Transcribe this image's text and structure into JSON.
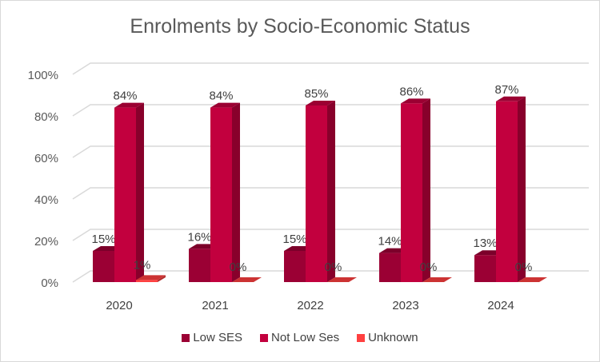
{
  "chart_data": {
    "type": "bar",
    "title": "Enrolments by Socio-Economic Status",
    "categories": [
      "2020",
      "2021",
      "2022",
      "2023",
      "2024"
    ],
    "series": [
      {
        "name": "Low SES",
        "values": [
          15,
          16,
          15,
          14,
          13
        ],
        "labels": [
          "15%",
          "16%",
          "15%",
          "14%",
          "13%"
        ],
        "color": "#9b0034"
      },
      {
        "name": "Not Low Ses",
        "values": [
          84,
          84,
          85,
          86,
          87
        ],
        "labels": [
          "84%",
          "84%",
          "85%",
          "86%",
          "87%"
        ],
        "color": "#c2003e"
      },
      {
        "name": "Unknown",
        "values": [
          1,
          0,
          0,
          0,
          0
        ],
        "labels": [
          "1%",
          "0%",
          "0%",
          "0%",
          "0%"
        ],
        "color": "#ff4040"
      }
    ],
    "yticks": [
      "0%",
      "20%",
      "40%",
      "60%",
      "80%",
      "100%"
    ],
    "ylim": [
      0,
      100
    ],
    "grid": true,
    "legend": "bottom",
    "style": "3d-column"
  }
}
